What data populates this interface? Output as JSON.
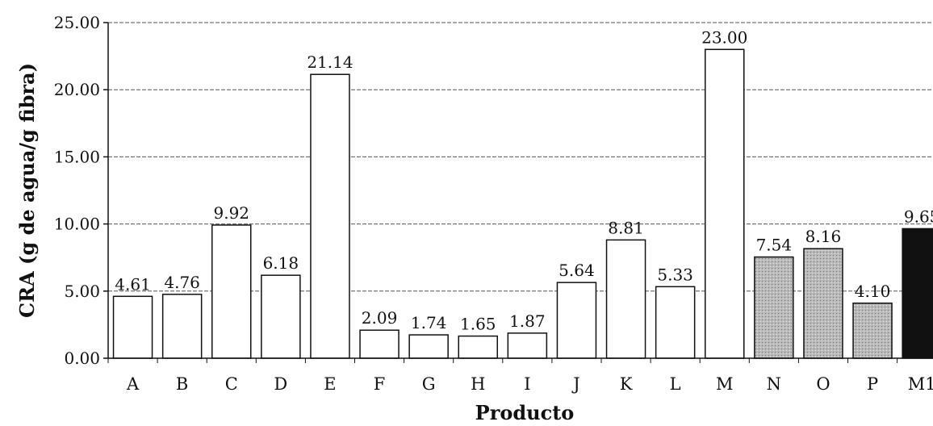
{
  "chart_data": {
    "type": "bar",
    "xlabel": "Producto",
    "ylabel": "CRA (g de agua/g fibra)",
    "ylim": [
      0,
      25
    ],
    "yticks": [
      "0.00",
      "5.00",
      "10.00",
      "15.00",
      "20.00",
      "25.00"
    ],
    "grid": true,
    "categories": [
      "A",
      "B",
      "C",
      "D",
      "E",
      "F",
      "G",
      "H",
      "I",
      "J",
      "K",
      "L",
      "M",
      "N",
      "O",
      "P",
      "M1"
    ],
    "values": [
      4.61,
      4.76,
      9.92,
      6.18,
      21.14,
      2.09,
      1.74,
      1.65,
      1.87,
      5.64,
      8.81,
      5.33,
      23.0,
      7.54,
      8.16,
      4.1,
      9.65
    ],
    "value_labels": [
      "4.61",
      "4.76",
      "9.92",
      "6.18",
      "21.14",
      "2.09",
      "1.74",
      "1.65",
      "1.87",
      "5.64",
      "8.81",
      "5.33",
      "23.00",
      "7.54",
      "8.16",
      "4.10",
      "9.65"
    ],
    "bar_fills": [
      "white",
      "white",
      "white",
      "white",
      "white",
      "white",
      "white",
      "white",
      "white",
      "white",
      "white",
      "white",
      "white",
      "gray",
      "gray",
      "gray",
      "black"
    ],
    "colors": {
      "white": "#ffffff",
      "gray": "#b9b9b9",
      "black": "#111111"
    }
  }
}
